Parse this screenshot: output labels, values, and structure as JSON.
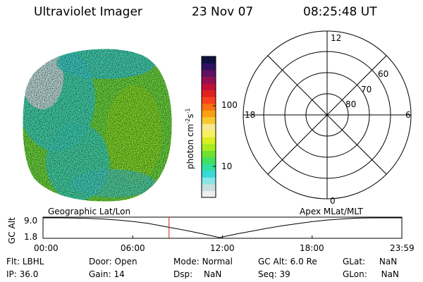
{
  "header": {
    "instrument": "Ultraviolet Imager",
    "date": "23 Nov 07",
    "time": "08:25:48 UT"
  },
  "colorbar": {
    "label": "photon cm",
    "exp1": "-2",
    "mid": "s",
    "exp2": "-1",
    "ticks": [
      {
        "value": 100,
        "label": "100"
      },
      {
        "value": 10,
        "label": "10"
      }
    ],
    "colors": [
      "#eeeeee",
      "#c8dede",
      "#8ae6e6",
      "#3ad8d8",
      "#30e0a0",
      "#40e060",
      "#70e030",
      "#a8ec20",
      "#d8f020",
      "#f8f060",
      "#f8e890",
      "#f8c830",
      "#f8a010",
      "#f87010",
      "#f84020",
      "#e02020",
      "#c01038",
      "#901050",
      "#601060",
      "#301060",
      "#101040"
    ]
  },
  "polar_grid": {
    "mlt_labels": [
      {
        "label": "12",
        "pos": "top"
      },
      {
        "label": "18",
        "pos": "left"
      },
      {
        "label": "6",
        "pos": "right"
      },
      {
        "label": "0",
        "pos": "bottom"
      }
    ],
    "lat_labels": [
      {
        "value": 60,
        "label": "60"
      },
      {
        "value": 70,
        "label": "70"
      },
      {
        "value": 80,
        "label": "80"
      }
    ]
  },
  "timeline": {
    "left_title": "Geographic Lat/Lon",
    "right_title": "Apex MLat/MLT",
    "ylabel": "GC Alt",
    "yticks": [
      "9.0",
      "1.8"
    ],
    "xticks": [
      "00:00",
      "06:00",
      "12:00",
      "18:00",
      "23:59"
    ]
  },
  "chart_data": {
    "type": "line",
    "title": "",
    "xlabel": "",
    "ylabel": "GC Alt",
    "ylim": [
      1.8,
      9.0
    ],
    "x_hours": [
      0,
      1.3,
      2,
      3,
      4,
      5,
      6,
      7,
      8,
      9,
      10,
      11,
      11.8,
      12.5,
      13,
      14,
      15,
      16,
      17,
      18,
      19,
      20,
      21,
      22,
      23,
      23.98
    ],
    "y": [
      9.0,
      9.0,
      8.95,
      8.8,
      8.6,
      8.2,
      7.7,
      7.0,
      6.0,
      5.0,
      3.9,
      2.8,
      1.8,
      2.6,
      3.2,
      4.2,
      5.2,
      6.1,
      6.9,
      7.6,
      8.2,
      8.6,
      8.9,
      9.0,
      9.0,
      9.0
    ],
    "marker_hour": 8.43
  },
  "info": {
    "flt_label": "Flt:",
    "flt_value": "LBHL",
    "ip_label": "IP:",
    "ip_value": "36.0",
    "door_label": "Door:",
    "door_value": "Open",
    "gain_label": "Gain:",
    "gain_value": "14",
    "mode_label": "Mode:",
    "mode_value": "Normal",
    "dsp_label": "Dsp:",
    "dsp_value": "NaN",
    "gcalt_label": "GC Alt:",
    "gcalt_value": "6.0 Re",
    "seq_label": "Seq:",
    "seq_value": "39",
    "glat_label": "GLat:",
    "glat_value": "NaN",
    "glon_label": "GLon:",
    "glon_value": "NaN"
  }
}
